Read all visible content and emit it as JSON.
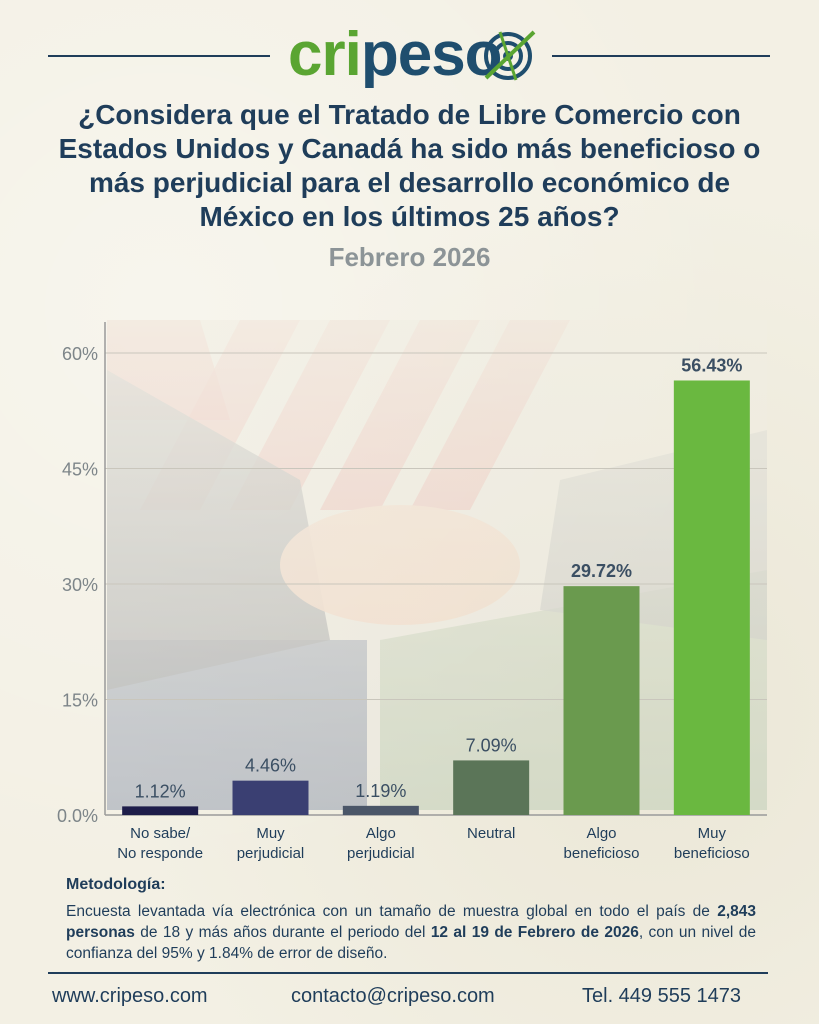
{
  "brand": {
    "logo_green": "cri",
    "logo_blue": "peso"
  },
  "title": "¿Considera que el Tratado de Libre Comercio con Estados Unidos y Canadá ha sido más beneficioso o más perjudicial para el desarrollo económico de México en los últimos 25 años?",
  "subtitle": "Febrero 2026",
  "chart_data": {
    "type": "bar",
    "categories": [
      "No sabe/\nNo responde",
      "Muy\nperjudicial",
      "Algo\nperjudicial",
      "Neutral",
      "Algo\nbeneficioso",
      "Muy\nbeneficioso"
    ],
    "values": [
      1.12,
      4.46,
      1.19,
      7.09,
      29.72,
      56.43
    ],
    "value_labels": [
      "1.12%",
      "4.46%",
      "1.19%",
      "7.09%",
      "29.72%",
      "56.43%"
    ],
    "bar_colors": [
      "#1e1d4a",
      "#3a3f72",
      "#4b5668",
      "#5b7558",
      "#6a9a4e",
      "#6ab840"
    ],
    "ylim": [
      0,
      60
    ],
    "yticks": [
      0,
      15,
      30,
      45,
      60
    ],
    "ytick_labels": [
      "0.0%",
      "15%",
      "30%",
      "45%",
      "60%"
    ],
    "grid": true
  },
  "methodology": {
    "heading": "Metodología:",
    "t1": "Encuesta levantada vía electrónica con un tamaño de muestra global en todo el país de ",
    "b1": "2,843 personas",
    "t2": " de 18 y más años durante el periodo del ",
    "b2": "12 al 19 de Febrero de 2026",
    "t3": ", con un nivel de confianza del 95% y 1.84% de error de diseño."
  },
  "footer": {
    "website": "www.cripeso.com",
    "email": "contacto@cripeso.com",
    "phone": "Tel. 449 555 1473"
  }
}
